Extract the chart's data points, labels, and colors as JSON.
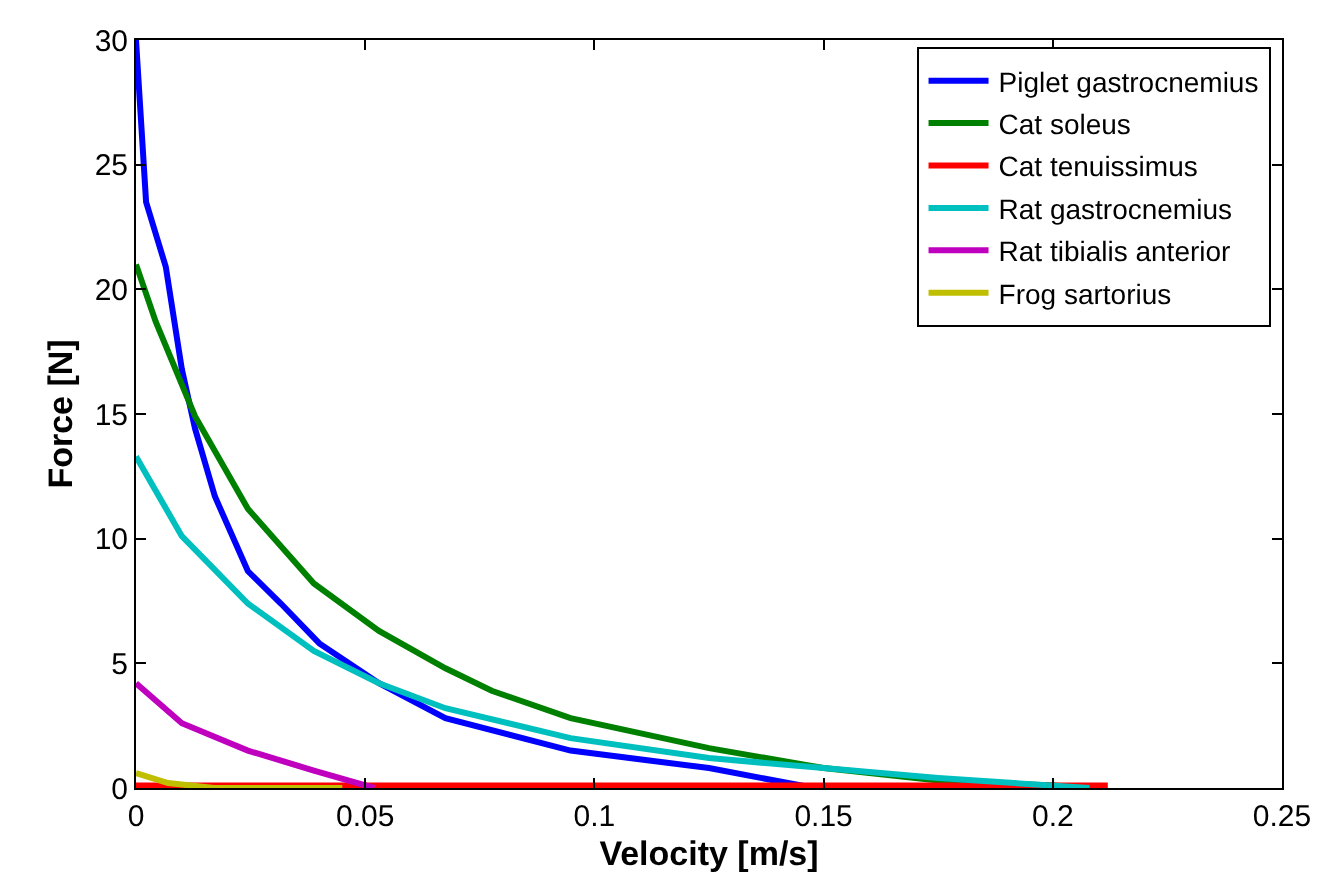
{
  "chart_data": {
    "type": "line",
    "xlabel": "Velocity [m/s]",
    "ylabel": "Force [N]",
    "xlim": [
      0,
      0.25
    ],
    "xticks": [
      0,
      0.05,
      0.1,
      0.15,
      0.2,
      0.25
    ],
    "ylim": [
      0,
      30
    ],
    "yticks": [
      0,
      5,
      10,
      15,
      20,
      25,
      30
    ],
    "legend": "top right",
    "marker": "none",
    "line_style": "solid",
    "series": [
      {
        "name": "Piglet gastrocnemius",
        "color": "#0000ff",
        "x": [
          0,
          0.0022,
          0.0065,
          0.01,
          0.0129,
          0.0172,
          0.0244,
          0.0316,
          0.04,
          0.053,
          0.0675,
          0.0948,
          0.125,
          0.148
        ],
        "values": [
          30,
          23.5,
          20.9,
          16.8,
          14.4,
          11.7,
          8.7,
          7.4,
          5.8,
          4.2,
          2.8,
          1.5,
          0.8,
          0
        ]
      },
      {
        "name": "Cat soleus",
        "color": "#008000",
        "x": [
          0,
          0.0043,
          0.0129,
          0.0244,
          0.0388,
          0.053,
          0.0675,
          0.0776,
          0.0948,
          0.125,
          0.15,
          0.175,
          0.2,
          0.207
        ],
        "values": [
          21,
          18.7,
          14.9,
          11.2,
          8.2,
          6.3,
          4.8,
          3.9,
          2.8,
          1.6,
          0.8,
          0.3,
          0.1,
          0
        ]
      },
      {
        "name": "Cat tenuissimus",
        "color": "#ff0000",
        "x": [
          0,
          0.212
        ],
        "values": [
          0.1,
          0.1
        ]
      },
      {
        "name": "Rat gastrocnemius",
        "color": "#00bfbf",
        "x": [
          0,
          0.01,
          0.0244,
          0.0388,
          0.053,
          0.0675,
          0.0948,
          0.125,
          0.15,
          0.175,
          0.208
        ],
        "values": [
          13.3,
          10.1,
          7.4,
          5.5,
          4.2,
          3.2,
          2.0,
          1.2,
          0.8,
          0.4,
          0
        ]
      },
      {
        "name": "Rat tibialis anterior",
        "color": "#bf00bf",
        "x": [
          0,
          0.01,
          0.0244,
          0.0388,
          0.052
        ],
        "values": [
          4.2,
          2.6,
          1.5,
          0.7,
          0
        ]
      },
      {
        "name": "Frog sartorius",
        "color": "#bfbf00",
        "x": [
          0,
          0.007,
          0.017,
          0.045
        ],
        "values": [
          0.6,
          0.2,
          0.0,
          0
        ]
      }
    ]
  }
}
